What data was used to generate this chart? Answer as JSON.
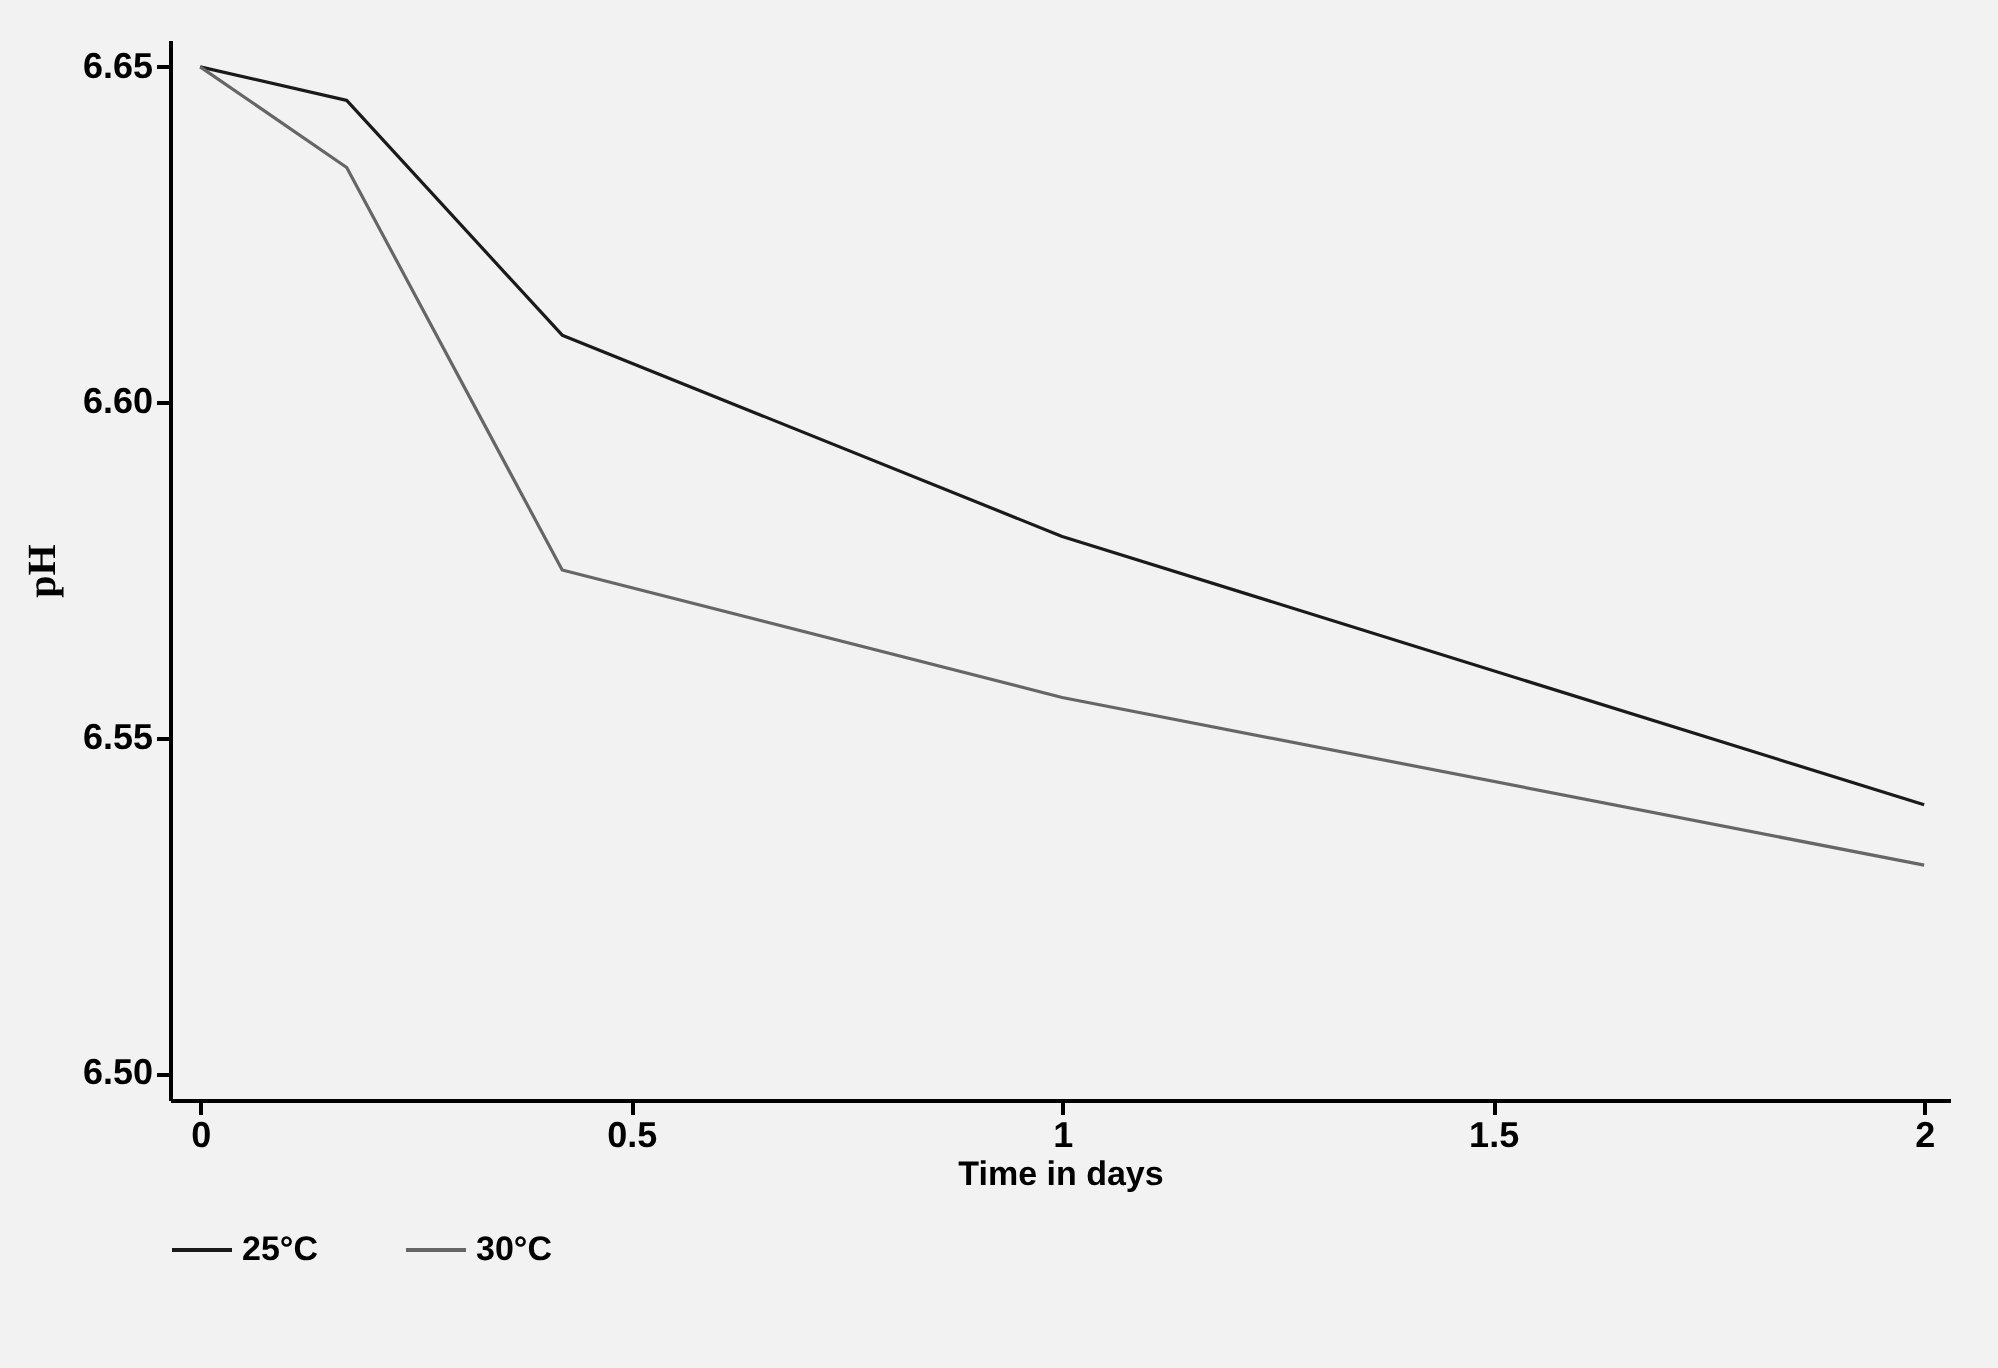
{
  "chart_data": {
    "type": "line",
    "xlabel": "Time in days",
    "ylabel": "pH",
    "x": [
      0,
      0.17,
      0.42,
      1,
      2
    ],
    "series": [
      {
        "name": "25°C",
        "color": "#1a1a1a",
        "values": [
          6.65,
          6.645,
          6.61,
          6.58,
          6.54
        ]
      },
      {
        "name": "30°C",
        "color": "#666666",
        "values": [
          6.65,
          6.635,
          6.575,
          6.556,
          6.531
        ]
      }
    ],
    "xlim": [
      -0.035,
      2.03
    ],
    "ylim": [
      6.496,
      6.654
    ],
    "xticks": [
      0,
      0.5,
      1,
      1.5,
      2
    ],
    "yticks": [
      {
        "value": 6.5,
        "label": "6.50"
      },
      6.55,
      {
        "value": 6.6,
        "label": "6.60"
      },
      6.65
    ],
    "grid": false,
    "legend": "bottom",
    "marker": "none",
    "line_style": "solid"
  }
}
